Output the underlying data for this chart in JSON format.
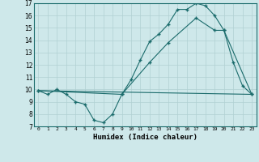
{
  "xlabel": "Humidex (Indice chaleur)",
  "bg_color": "#cee8ea",
  "grid_color": "#b0d0d2",
  "line_color": "#1a6b6b",
  "xlim": [
    -0.5,
    23.5
  ],
  "ylim": [
    7,
    17
  ],
  "xticks": [
    0,
    1,
    2,
    3,
    4,
    5,
    6,
    7,
    8,
    9,
    10,
    11,
    12,
    13,
    14,
    15,
    16,
    17,
    18,
    19,
    20,
    21,
    22,
    23
  ],
  "yticks": [
    7,
    8,
    9,
    10,
    11,
    12,
    13,
    14,
    15,
    16,
    17
  ],
  "series1_x": [
    0,
    1,
    2,
    3,
    4,
    5,
    6,
    7,
    8,
    9,
    10,
    11,
    12,
    13,
    14,
    15,
    16,
    17,
    18,
    19,
    20,
    21,
    22,
    23
  ],
  "series1_y": [
    9.9,
    9.6,
    10.0,
    9.6,
    9.0,
    8.8,
    7.5,
    7.3,
    8.0,
    9.6,
    10.8,
    12.4,
    13.9,
    14.5,
    15.3,
    16.5,
    16.5,
    17.0,
    16.8,
    16.0,
    14.8,
    12.2,
    10.3,
    9.6
  ],
  "series2_x": [
    0,
    9,
    12,
    14,
    17,
    19,
    20,
    23
  ],
  "series2_y": [
    9.9,
    9.6,
    12.2,
    13.8,
    15.8,
    14.8,
    14.8,
    9.6
  ],
  "series3_x": [
    0,
    23
  ],
  "series3_y": [
    9.9,
    9.6
  ]
}
